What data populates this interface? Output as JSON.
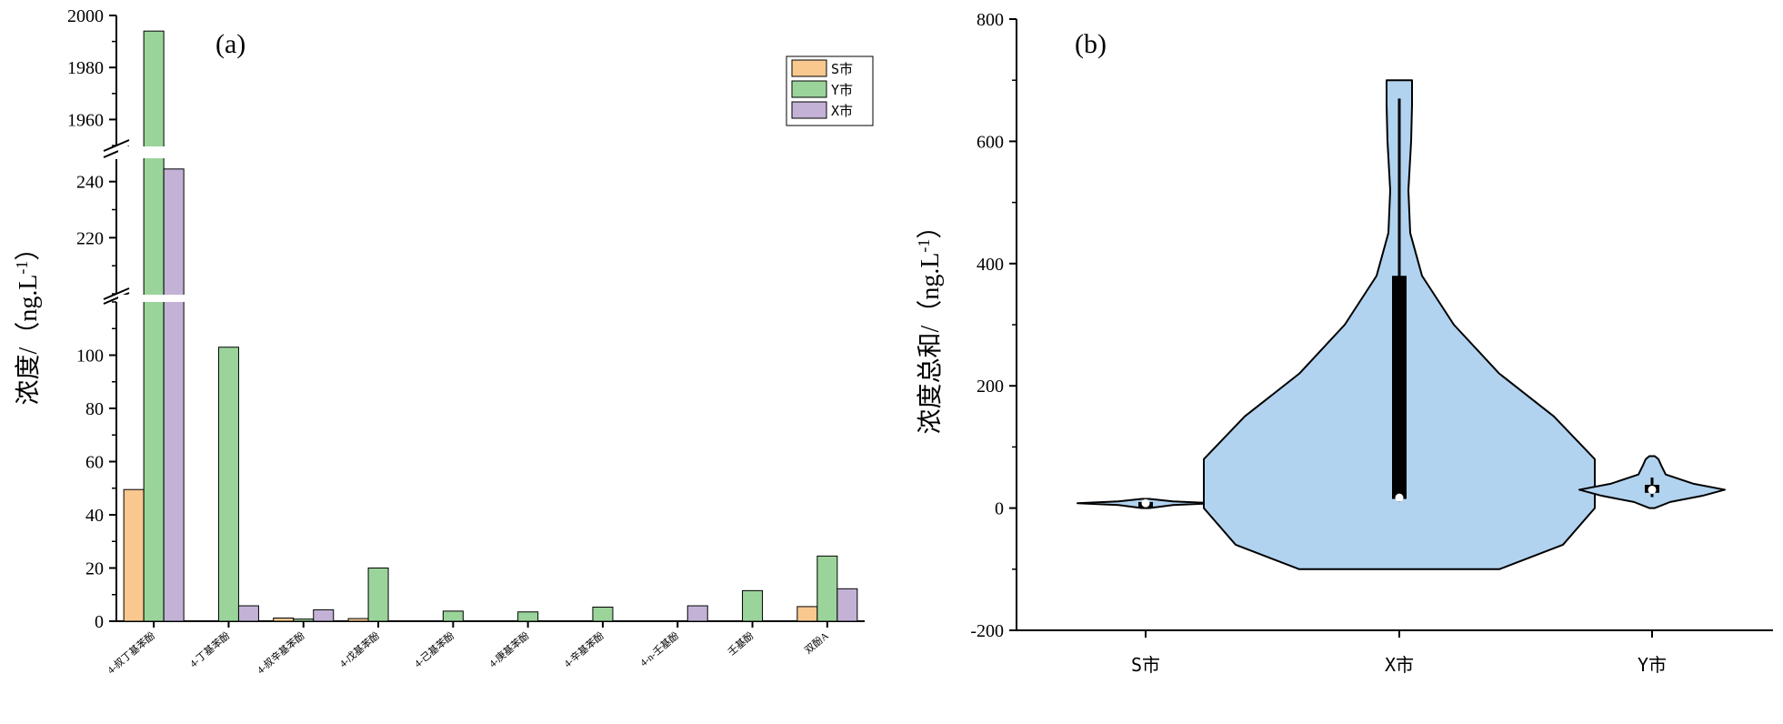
{
  "chart_data": [
    {
      "type": "bar",
      "panel_label": "(a)",
      "ylabel": "浓度/（ng.L",
      "ylabel_sup": "-1",
      "ylabel_end": "）",
      "categories": [
        "4-叔丁基苯酚",
        "4-丁基苯酚",
        "4-叔辛基苯酚",
        "4-戊基苯酚",
        "4-己基苯酚",
        "4-庚基苯酚",
        "4-辛基苯酚",
        "4-n-壬基酚",
        "壬基酚",
        "双酚A"
      ],
      "series": [
        {
          "name": "S市",
          "color": "#f9c88f",
          "values": [
            49.5,
            0,
            1.2,
            1.0,
            0,
            0,
            0,
            0,
            0,
            5.5
          ]
        },
        {
          "name": "Y市",
          "color": "#9bd49b",
          "values": [
            1994,
            103,
            0.8,
            20,
            3.8,
            3.5,
            5.3,
            0,
            11.5,
            24.5
          ]
        },
        {
          "name": "X市",
          "color": "#c3b2d6",
          "values": [
            244.5,
            5.8,
            4.3,
            0,
            0,
            0,
            0,
            5.8,
            0,
            12.2
          ]
        }
      ],
      "axis_segments": [
        {
          "range": [
            0,
            120
          ],
          "ticks": [
            0,
            20,
            40,
            60,
            80,
            100
          ]
        },
        {
          "range": [
            200,
            248
          ],
          "ticks": [
            220,
            240
          ]
        },
        {
          "range": [
            1950,
            2000
          ],
          "ticks": [
            1960,
            1980,
            2000
          ]
        }
      ],
      "legend_placement": "top-right",
      "grid": false
    },
    {
      "type": "violin",
      "panel_label": "(b)",
      "ylabel": "浓度总和/（ng.L",
      "ylabel_sup": "-1",
      "ylabel_end": "）",
      "categories": [
        "S市",
        "X市",
        "Y市"
      ],
      "ylim": [
        -200,
        800
      ],
      "yticks": [
        -200,
        0,
        200,
        400,
        600,
        800
      ],
      "color": "#b1d3f0",
      "violins": [
        {
          "name": "S市",
          "kde_range": [
            0,
            15
          ],
          "box": [
            5,
            10
          ],
          "whisker": [
            3,
            13
          ],
          "median": 8
        },
        {
          "name": "X市",
          "kde_range": [
            -100,
            700
          ],
          "box": [
            15,
            380
          ],
          "whisker": [
            10,
            670
          ],
          "median": 17
        },
        {
          "name": "Y市",
          "kde_range": [
            0,
            85
          ],
          "box": [
            25,
            38
          ],
          "whisker": [
            18,
            50
          ],
          "median": 30
        }
      ],
      "grid": false
    }
  ]
}
